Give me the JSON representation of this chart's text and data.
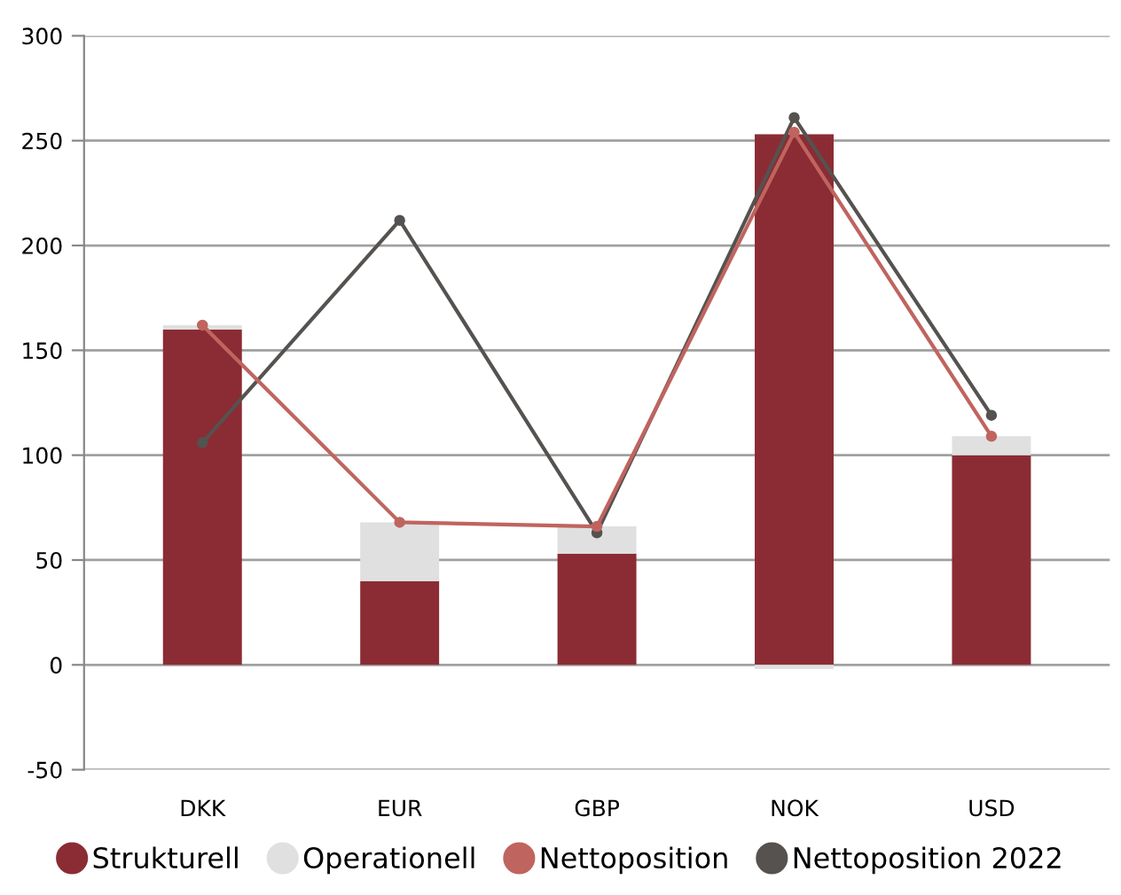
{
  "chart_data": {
    "type": "bar",
    "stacked": true,
    "categories": [
      "DKK",
      "EUR",
      "GBP",
      "NOK",
      "USD"
    ],
    "series": [
      {
        "name": "Strukturell",
        "color": "#8b2c34",
        "values": [
          160,
          40,
          53,
          253,
          100
        ]
      },
      {
        "name": "Operationell",
        "color": "#e0e0e0",
        "values": [
          2,
          28,
          13,
          -2,
          9
        ]
      },
      {
        "name": "Nettoposition",
        "type": "line",
        "color": "#c0645f",
        "values": [
          162,
          68,
          66,
          254,
          109
        ]
      },
      {
        "name": "Nettoposition 2022",
        "type": "line",
        "color": "#555250",
        "values": [
          106,
          212,
          63,
          261,
          119
        ]
      }
    ],
    "ylim": [
      -50,
      300
    ],
    "yticks": [
      -50,
      0,
      50,
      100,
      150,
      200,
      250,
      300
    ],
    "grid": "y",
    "legend": "bottom",
    "marker": "circle",
    "line_style": "solid"
  }
}
